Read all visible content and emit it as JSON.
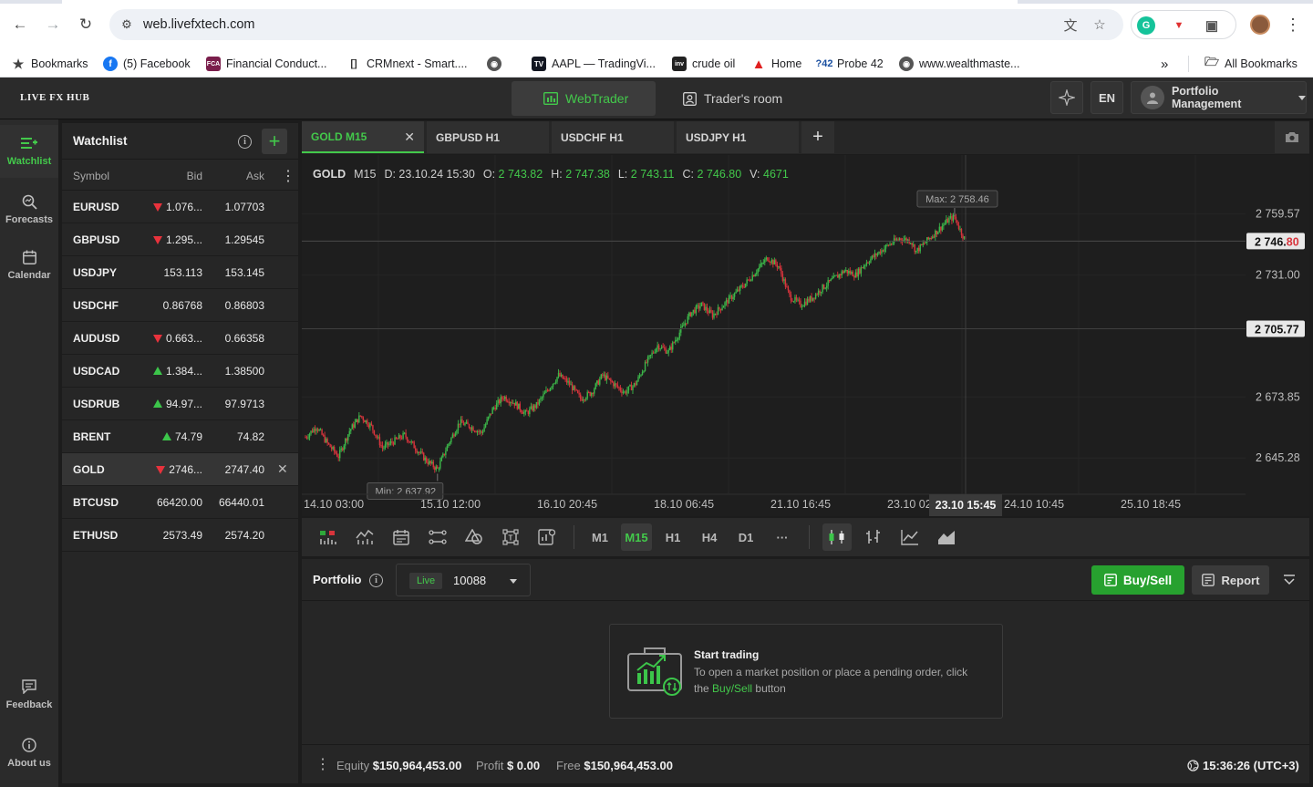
{
  "browser": {
    "url": "web.livefxtech.com",
    "bookmarks": [
      {
        "label": "Bookmarks",
        "icon": "star-icon"
      },
      {
        "label": "(5) Facebook",
        "icon": "facebook-icon"
      },
      {
        "label": "Financial Conduct...",
        "icon": "fca-icon"
      },
      {
        "label": "CRMnext - Smart....",
        "icon": "crmnext-icon"
      },
      {
        "label": "",
        "icon": "globe-icon"
      },
      {
        "label": "AAPL — TradingVi...",
        "icon": "tradingview-icon"
      },
      {
        "label": "crude oil",
        "icon": "investing-icon"
      },
      {
        "label": "Home",
        "icon": "home-red-icon"
      },
      {
        "label": "Probe 42",
        "icon": "probe42-icon"
      },
      {
        "label": "www.wealthmaste...",
        "icon": "globe-icon"
      }
    ],
    "all_bookmarks": "All Bookmarks",
    "more": "»"
  },
  "header": {
    "brand": "LIVE FX HUB",
    "tabs": [
      {
        "label": "WebTrader",
        "active": true
      },
      {
        "label": "Trader's room",
        "active": false
      }
    ],
    "language": "EN",
    "portfolio_menu": "Portfolio Management"
  },
  "rail": {
    "items": [
      {
        "label": "Watchlist",
        "icon": "watchlist-icon",
        "active": true
      },
      {
        "label": "Forecasts",
        "icon": "forecasts-icon",
        "active": false
      },
      {
        "label": "Calendar",
        "icon": "calendar-icon",
        "active": false
      },
      {
        "label": "Feedback",
        "icon": "feedback-icon",
        "active": false
      },
      {
        "label": "About us",
        "icon": "info-icon",
        "active": false
      }
    ]
  },
  "watchlist": {
    "title": "Watchlist",
    "columns": {
      "symbol": "Symbol",
      "bid": "Bid",
      "ask": "Ask"
    },
    "rows": [
      {
        "symbol": "EURUSD",
        "bid": "1.076...",
        "ask": "1.07703",
        "dir": "down"
      },
      {
        "symbol": "GBPUSD",
        "bid": "1.295...",
        "ask": "1.29545",
        "dir": "down"
      },
      {
        "symbol": "USDJPY",
        "bid": "153.113",
        "ask": "153.145",
        "dir": ""
      },
      {
        "symbol": "USDCHF",
        "bid": "0.86768",
        "ask": "0.86803",
        "dir": ""
      },
      {
        "symbol": "AUDUSD",
        "bid": "0.663...",
        "ask": "0.66358",
        "dir": "down"
      },
      {
        "symbol": "USDCAD",
        "bid": "1.384...",
        "ask": "1.38500",
        "dir": "up"
      },
      {
        "symbol": "USDRUB",
        "bid": "94.97...",
        "ask": "97.9713",
        "dir": "up"
      },
      {
        "symbol": "BRENT",
        "bid": "74.79",
        "ask": "74.82",
        "dir": "up"
      },
      {
        "symbol": "GOLD",
        "bid": "2746...",
        "ask": "2747.40",
        "dir": "down",
        "selected": true
      },
      {
        "symbol": "BTCUSD",
        "bid": "66420.00",
        "ask": "66440.01",
        "dir": ""
      },
      {
        "symbol": "ETHUSD",
        "bid": "2573.49",
        "ask": "2574.20",
        "dir": ""
      }
    ]
  },
  "chart_tabs": [
    {
      "label": "GOLD M15",
      "active": true
    },
    {
      "label": "GBPUSD H1",
      "active": false
    },
    {
      "label": "USDCHF H1",
      "active": false
    },
    {
      "label": "USDJPY H1",
      "active": false
    }
  ],
  "ohlc": {
    "symbol": "GOLD",
    "tf": "M15",
    "d_label": "D:",
    "date": "23.10.24 15:30",
    "o_label": "O:",
    "o": "2 743.82",
    "h_label": "H:",
    "h": "2 747.38",
    "l_label": "L:",
    "l": "2 743.11",
    "c_label": "C:",
    "c": "2 746.80",
    "v_label": "V:",
    "v": "4671"
  },
  "chart_data": {
    "type": "candlestick",
    "symbol": "GOLD",
    "timeframe": "M15",
    "y_ticks": [
      "2 759.57",
      "2 731.00",
      "2 673.85",
      "2 645.28"
    ],
    "ylim": [
      2630,
      2770
    ],
    "x_ticks": [
      "14.10 03:00",
      "15.10 12:00",
      "16.10 20:45",
      "18.10 06:45",
      "21.10 16:45",
      "23.10 02",
      "24.10 10:45",
      "25.10 18:45"
    ],
    "crosshair_time": "23.10 15:45",
    "crosshair_price": "2 705.77",
    "last_price_main": "2 746.",
    "last_price_tail": "80",
    "last_price": 2746.8,
    "max_label": "Max: 2 758.46",
    "min_label": "Min: 2 637.92",
    "max": 2758.46,
    "min": 2637.92,
    "close_path": [
      [
        0,
        2655
      ],
      [
        2,
        2660
      ],
      [
        4,
        2652
      ],
      [
        6,
        2646
      ],
      [
        8,
        2658
      ],
      [
        10,
        2665
      ],
      [
        12,
        2660
      ],
      [
        14,
        2650
      ],
      [
        16,
        2653
      ],
      [
        18,
        2656
      ],
      [
        20,
        2650
      ],
      [
        22,
        2644
      ],
      [
        24,
        2640
      ],
      [
        26,
        2652
      ],
      [
        28,
        2662
      ],
      [
        30,
        2660
      ],
      [
        32,
        2657
      ],
      [
        34,
        2668
      ],
      [
        36,
        2674
      ],
      [
        38,
        2671
      ],
      [
        40,
        2666
      ],
      [
        42,
        2670
      ],
      [
        44,
        2677
      ],
      [
        46,
        2684
      ],
      [
        48,
        2680
      ],
      [
        50,
        2673
      ],
      [
        52,
        2676
      ],
      [
        54,
        2684
      ],
      [
        56,
        2680
      ],
      [
        58,
        2676
      ],
      [
        60,
        2680
      ],
      [
        62,
        2690
      ],
      [
        64,
        2698
      ],
      [
        66,
        2695
      ],
      [
        68,
        2704
      ],
      [
        70,
        2713
      ],
      [
        72,
        2717
      ],
      [
        74,
        2712
      ],
      [
        76,
        2717
      ],
      [
        78,
        2722
      ],
      [
        80,
        2727
      ],
      [
        82,
        2733
      ],
      [
        84,
        2739
      ],
      [
        86,
        2735
      ],
      [
        88,
        2721
      ],
      [
        90,
        2717
      ],
      [
        92,
        2720
      ],
      [
        94,
        2725
      ],
      [
        96,
        2729
      ],
      [
        98,
        2733
      ],
      [
        100,
        2731
      ],
      [
        102,
        2737
      ],
      [
        104,
        2741
      ],
      [
        106,
        2745
      ],
      [
        108,
        2748
      ],
      [
        110,
        2747
      ],
      [
        111,
        2742
      ],
      [
        113,
        2747
      ],
      [
        115,
        2752
      ],
      [
        117,
        2757
      ],
      [
        118,
        2758
      ],
      [
        119,
        2752
      ],
      [
        120,
        2746.8
      ]
    ]
  },
  "toolbar": {
    "timeframes": [
      "M1",
      "M15",
      "H1",
      "H4",
      "D1"
    ],
    "active_tf": "M15",
    "more": "···"
  },
  "portfolio": {
    "title": "Portfolio",
    "badge": "Live",
    "account": "10088",
    "buy_sell": "Buy/Sell",
    "report": "Report",
    "start_title": "Start trading",
    "start_text_1": "To open a market position or place a pending order, click the",
    "start_text_link": "Buy/Sell",
    "start_text_2": "button",
    "equity_label": "Equity",
    "equity": "$150,964,453.00",
    "profit_label": "Profit",
    "profit": "$ 0.00",
    "free_label": "Free",
    "free": "$150,964,453.00",
    "clock": "15:36:26 (UTC+3)"
  },
  "colors": {
    "accent": "#43c94b",
    "down": "#e8323c",
    "up": "#3cc54a",
    "candle_red": "#d8343c",
    "candle_green": "#3cb84a"
  }
}
